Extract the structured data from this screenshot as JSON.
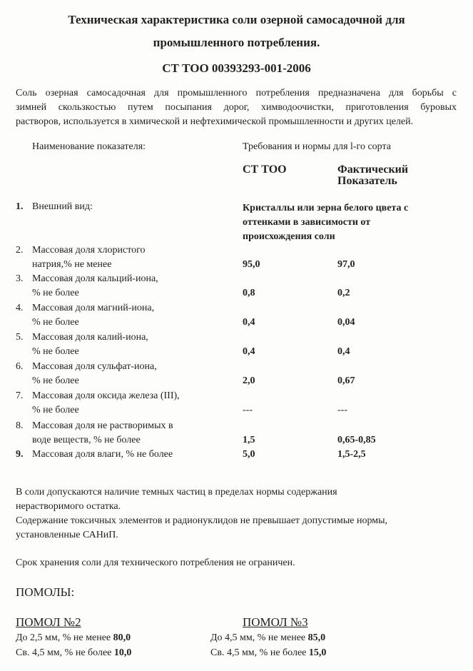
{
  "title_line1": "Техническая характеристика соли озерной самосадочной для",
  "title_line2": "промышленного потребления.",
  "standard": "СТ ТОО 00393293-001-2006",
  "intro": [
    "Соль озерная самосадочная для промышленного потребления предназначена для борьбы с",
    "зимней скользкостью путем посыпания дорог, химводоочистки, приготовления буровых",
    "растворов, используется в химической и нефтехимической промышленности и других целей."
  ],
  "table": {
    "header_name": "Наименование показателя:",
    "header_req": "Требования и нормы для l-го сорта",
    "col1": "СТ ТОО",
    "col2_line1": "Фактический",
    "col2_line2": "Показатель",
    "rows": [
      {
        "num": "1.",
        "name": [
          "Внешний вид:"
        ],
        "value_lines": [
          "Кристаллы или зерна белого цвета с",
          "оттенками в зависимости от",
          "происхождения соли"
        ]
      },
      {
        "num": "2.",
        "name": [
          "Массовая доля хлористого",
          "натрия,% не менее"
        ],
        "std": "95,0",
        "actual": "97,0"
      },
      {
        "num": "3.",
        "name": [
          "Массовая доля кальций-иона,",
          "% не более"
        ],
        "std": "0,8",
        "actual": "0,2"
      },
      {
        "num": "4.",
        "name": [
          "Массовая доля магний-иона,",
          "% не более"
        ],
        "std": "0,4",
        "actual": "0,04"
      },
      {
        "num": "5.",
        "name": [
          "Массовая доля калий-иона,",
          "% не более"
        ],
        "std": "0,4",
        "actual": "0,4"
      },
      {
        "num": "6.",
        "name": [
          "Массовая доля сульфат-иона,",
          "% не более"
        ],
        "std": "2,0",
        "actual": "0,67"
      },
      {
        "num": "7.",
        "name": [
          "Массовая доля оксида железа (III),",
          "% не более"
        ],
        "std": "---",
        "actual": "---"
      },
      {
        "num": "8.",
        "name": [
          "Массовая доля не растворимых в",
          "воде веществ, % не более"
        ],
        "std": "1,5",
        "actual": "0,65-0,85"
      },
      {
        "num": "9.",
        "name": [
          "Массовая доля влаги, % не более"
        ],
        "std": "5,0",
        "actual": "1,5-2,5"
      }
    ]
  },
  "notes": [
    "В соли допускаются наличие темных частиц в пределах нормы содержания",
    "нерастворимого остатка.",
    "Содержание токсичных элементов и радионуклидов не превышает допустимые нормы,",
    "установленные САНиП."
  ],
  "storage": "Срок хранения соли  для технического потребления не ограничен.",
  "grinds_heading": "ПОМОЛЫ:",
  "grinds": [
    {
      "title": "ПОМОЛ №2",
      "lines": [
        {
          "text": "До 2,5 мм, % не менее ",
          "value": "80,0"
        },
        {
          "text": "Св. 4,5 мм, % не более ",
          "value": "10,0"
        }
      ]
    },
    {
      "title": "ПОМОЛ №3",
      "lines": [
        {
          "text": "До 4,5 мм, % не менее ",
          "value": "85,0"
        },
        {
          "text": "Св. 4,5 мм, % не более ",
          "value": "15,0"
        }
      ]
    }
  ]
}
